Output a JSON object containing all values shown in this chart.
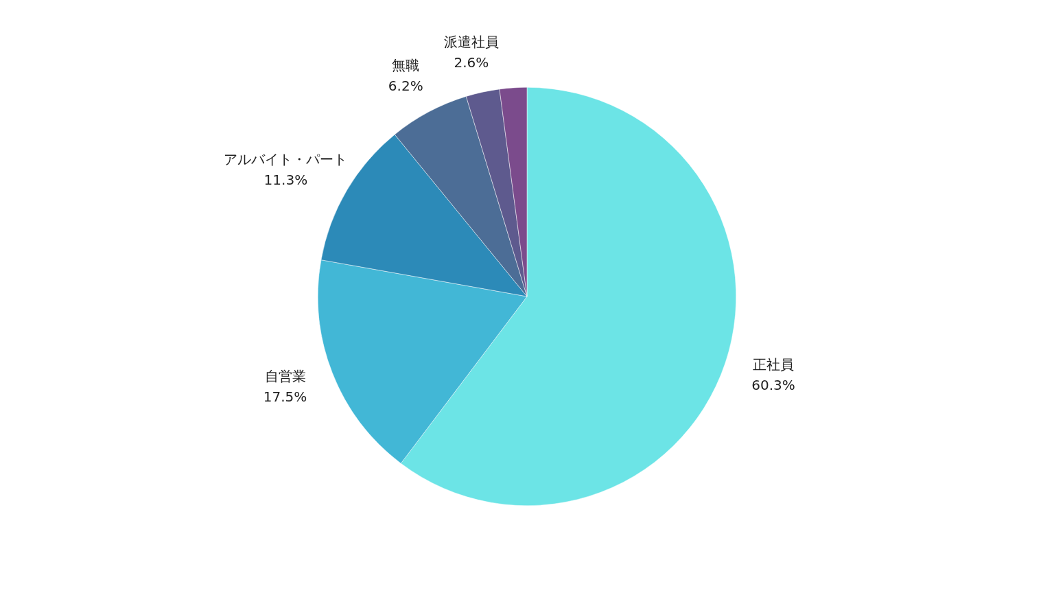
{
  "chart_data": {
    "type": "pie",
    "categories": [
      "正社員",
      "自営業",
      "アルバイト・パート",
      "無職",
      "派遣社員",
      null
    ],
    "values": [
      60.3,
      17.5,
      11.3,
      6.2,
      2.6,
      2.1
    ],
    "value_labels": [
      "60.3%",
      "17.5%",
      "11.3%",
      "6.2%",
      "2.6%",
      null
    ],
    "colors": [
      "#6ce4e6",
      "#42b7d6",
      "#2c8ab8",
      "#4c6d96",
      "#5e5a8e",
      "#7b4b8c"
    ],
    "legend": false
  }
}
